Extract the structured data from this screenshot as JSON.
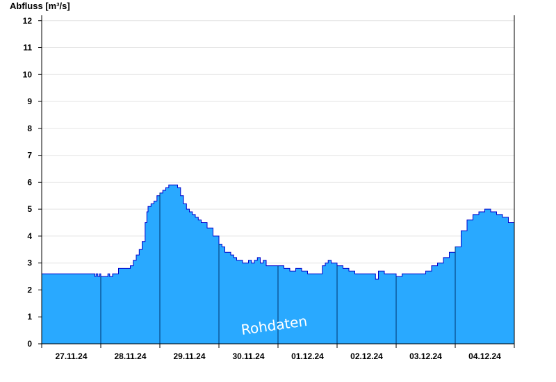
{
  "chart_data": {
    "type": "area",
    "ylabel": "Abfluss [m³/s]",
    "ylim": [
      0,
      12.2
    ],
    "yticks": [
      0,
      1,
      2,
      3,
      4,
      5,
      6,
      7,
      8,
      9,
      10,
      11,
      12
    ],
    "xlim": [
      0,
      8
    ],
    "day_labels": [
      "27.11.24",
      "28.11.24",
      "29.11.24",
      "30.11.24",
      "01.12.24",
      "02.12.24",
      "03.12.24",
      "04.12.24"
    ],
    "grid": true,
    "watermark": "Rohdaten",
    "colors": {
      "fill": "#29a9ff",
      "line": "#0000cc",
      "day_divider": "#00336e",
      "grid": "#e4e4e4"
    },
    "series": [
      {
        "x": [
          0,
          0.88,
          0.9,
          0.92,
          0.95,
          0.98,
          1.0,
          1.02,
          1.05,
          1.1,
          1.12,
          1.15,
          1.2,
          1.25,
          1.3,
          1.3,
          1.45,
          1.5,
          1.55,
          1.6,
          1.65,
          1.7,
          1.75,
          1.78,
          1.8,
          1.85,
          1.9,
          1.95,
          2.0,
          2.05,
          2.1,
          2.15,
          2.2,
          2.25,
          2.3,
          2.35,
          2.4,
          2.45,
          2.5,
          2.55,
          2.6,
          2.65,
          2.7,
          2.8,
          2.9,
          3.0,
          3.05,
          3.1,
          3.2,
          3.25,
          3.3,
          3.35,
          3.4,
          3.45,
          3.5,
          3.55,
          3.6,
          3.65,
          3.7,
          3.75,
          3.8,
          3.85,
          3.9,
          4.0,
          4.1,
          4.2,
          4.3,
          4.4,
          4.5,
          4.6,
          4.7,
          4.75,
          4.8,
          4.85,
          4.9,
          5.0,
          5.1,
          5.2,
          5.3,
          5.4,
          5.5,
          5.6,
          5.65,
          5.7,
          5.75,
          5.8,
          5.9,
          6.0,
          6.1,
          6.2,
          6.3,
          6.4,
          6.5,
          6.6,
          6.7,
          6.8,
          6.9,
          7.0,
          7.1,
          7.2,
          7.3,
          7.4,
          7.5,
          7.6,
          7.7,
          7.8,
          7.9,
          8.0
        ],
        "y": [
          2.6,
          2.6,
          2.5,
          2.6,
          2.5,
          2.6,
          2.5,
          2.5,
          2.5,
          2.5,
          2.6,
          2.5,
          2.6,
          2.6,
          2.7,
          2.8,
          2.8,
          2.9,
          3.1,
          3.3,
          3.5,
          3.8,
          4.5,
          4.9,
          5.1,
          5.2,
          5.3,
          5.5,
          5.6,
          5.7,
          5.8,
          5.9,
          5.9,
          5.9,
          5.8,
          5.5,
          5.2,
          5.0,
          4.9,
          4.8,
          4.7,
          4.6,
          4.5,
          4.3,
          4.0,
          3.7,
          3.6,
          3.4,
          3.3,
          3.2,
          3.1,
          3.1,
          3.0,
          3.0,
          3.1,
          3.0,
          3.1,
          3.2,
          3.0,
          3.1,
          2.9,
          2.9,
          2.9,
          2.9,
          2.8,
          2.7,
          2.8,
          2.7,
          2.6,
          2.6,
          2.6,
          2.9,
          3.0,
          3.1,
          3.0,
          2.9,
          2.8,
          2.7,
          2.6,
          2.6,
          2.6,
          2.6,
          2.4,
          2.7,
          2.7,
          2.6,
          2.6,
          2.5,
          2.6,
          2.6,
          2.6,
          2.6,
          2.7,
          2.9,
          3.0,
          3.2,
          3.4,
          3.6,
          4.2,
          4.6,
          4.8,
          4.9,
          5.0,
          4.9,
          4.8,
          4.7,
          4.5,
          4.3
        ],
        "step_ends": [
          4.0,
          3.9,
          3.8,
          3.8
        ]
      }
    ]
  }
}
